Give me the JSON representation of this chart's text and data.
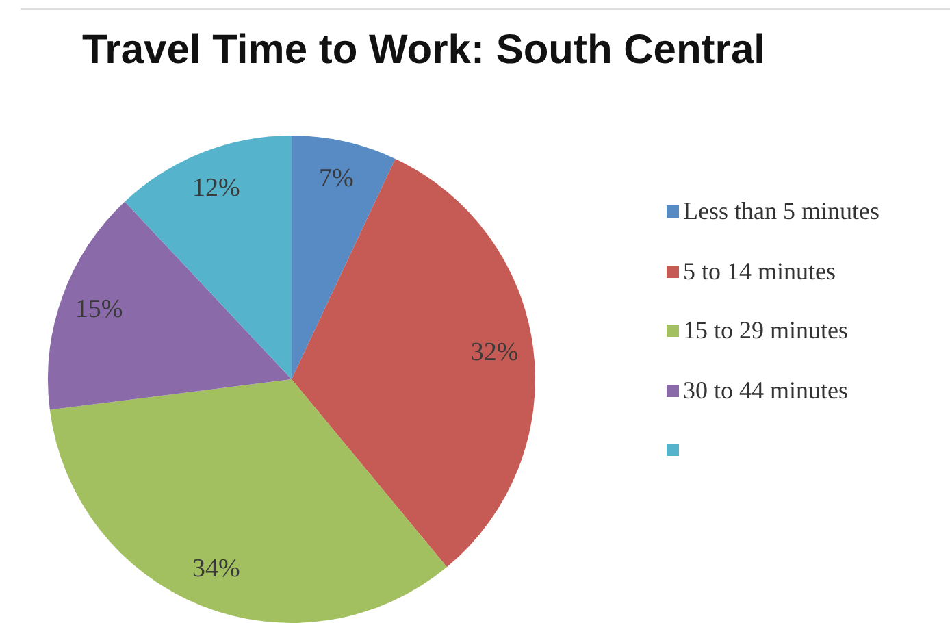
{
  "chart_data": {
    "type": "pie",
    "title": "Travel Time to Work: South Central",
    "categories": [
      "Less than 5 minutes",
      "5 to 14 minutes",
      "15 to 29 minutes",
      "30 to 44 minutes",
      null
    ],
    "values": [
      7,
      32,
      34,
      15,
      12
    ],
    "value_labels": [
      "7%",
      "32%",
      "34%",
      "15%",
      "12%"
    ],
    "colors": [
      "#588bc4",
      "#c65a55",
      "#a3c060",
      "#8a6aa8",
      "#55b3cb"
    ],
    "legend": "right"
  }
}
